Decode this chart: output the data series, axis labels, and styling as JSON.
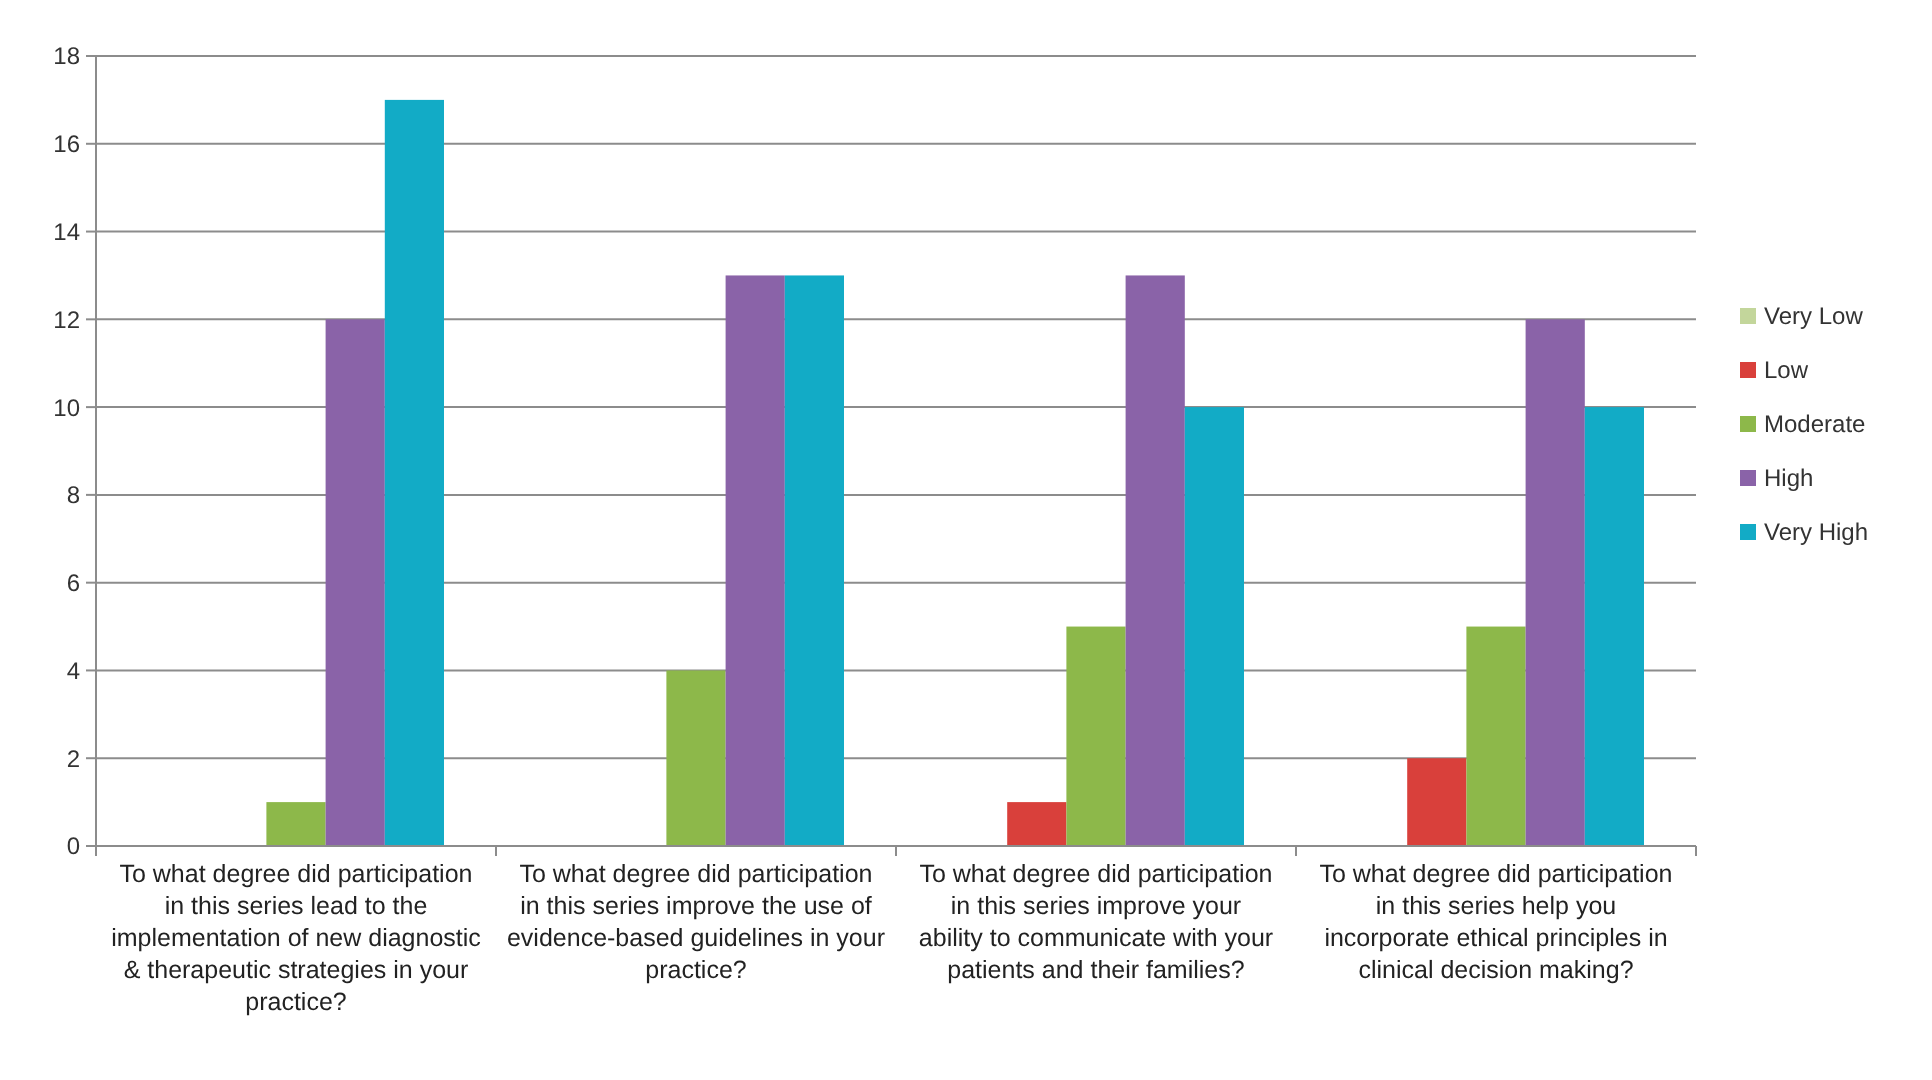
{
  "chart_data": {
    "type": "bar",
    "categories": [
      "To what degree did participation in this series lead to the implementation of new diagnostic & therapeutic strategies in your practice?",
      "To what degree did participation in this series improve the use of evidence-based guidelines in your practice?",
      "To what degree did participation in this series improve your ability to communicate with your patients and their families?",
      "To what degree did participation in this series help you incorporate ethical principles in clinical decision making?"
    ],
    "series": [
      {
        "name": "Very Low",
        "color": "#c3d69b",
        "values": [
          0,
          0,
          0,
          0
        ]
      },
      {
        "name": "Low",
        "color": "#d9403b",
        "values": [
          0,
          0,
          1,
          2
        ]
      },
      {
        "name": "Moderate",
        "color": "#8db84a",
        "values": [
          1,
          4,
          5,
          5
        ]
      },
      {
        "name": "High",
        "color": "#8a63a8",
        "values": [
          12,
          13,
          13,
          12
        ]
      },
      {
        "name": "Very High",
        "color": "#12abc6",
        "values": [
          17,
          13,
          10,
          10
        ]
      }
    ],
    "ylim": [
      0,
      18
    ],
    "yticks": [
      0,
      2,
      4,
      6,
      8,
      10,
      12,
      14,
      16,
      18
    ],
    "grid": "y",
    "legend": "right"
  }
}
